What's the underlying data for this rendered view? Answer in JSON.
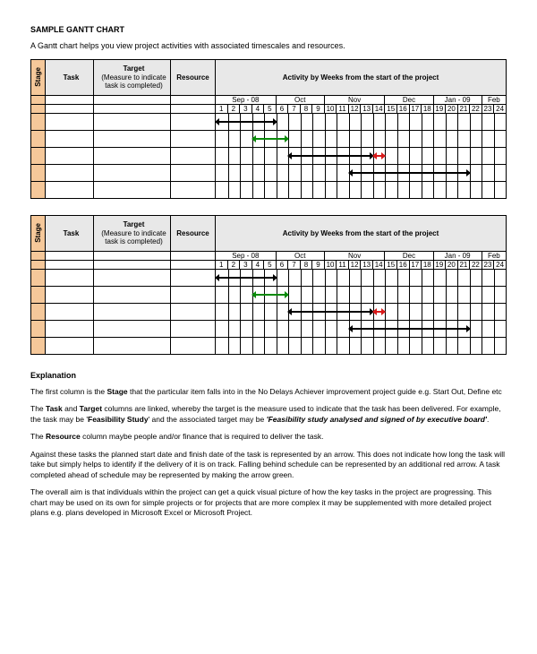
{
  "title": "SAMPLE GANTT CHART",
  "intro": "A Gantt chart helps you view project activities with associated timescales and resources.",
  "columns": {
    "stage": "Stage",
    "task": "Task",
    "target": "Target",
    "target_sub": "(Measure to indicate task is completed)",
    "resource": "Resource",
    "activity": "Activity by Weeks from the start of the project"
  },
  "months": [
    "Sep - 08",
    "Oct",
    "Nov",
    "Dec",
    "Jan - 09",
    "Feb"
  ],
  "month_spans": [
    5,
    4,
    5,
    4,
    4,
    2
  ],
  "weeks": [
    "1",
    "2",
    "3",
    "4",
    "5",
    "6",
    "7",
    "8",
    "9",
    "10",
    "11",
    "12",
    "13",
    "14",
    "15",
    "16",
    "17",
    "18",
    "19",
    "20",
    "21",
    "22",
    "23",
    "24"
  ],
  "gantt": {
    "n_weeks": 24,
    "colors": {
      "stage_bg": "#f5c89a",
      "header_bg": "#e8e8e8",
      "border": "#000000",
      "arrow_black": "#000000",
      "arrow_green": "#0a8a0a",
      "arrow_red": "#d81a1a"
    },
    "rows": [
      {
        "arrows": [
          {
            "start": 1,
            "end": 6,
            "color": "#000000"
          }
        ]
      },
      {
        "arrows": [
          {
            "start": 4,
            "end": 7,
            "color": "#0a8a0a"
          }
        ]
      },
      {
        "arrows": [
          {
            "start": 7,
            "end": 14,
            "color": "#000000"
          },
          {
            "start": 14,
            "end": 15,
            "color": "#d81a1a"
          }
        ]
      },
      {
        "arrows": [
          {
            "start": 12,
            "end": 22,
            "color": "#000000"
          }
        ]
      },
      {
        "arrows": []
      }
    ]
  },
  "explanation": {
    "heading": "Explanation",
    "p1_a": "The first column is the ",
    "p1_b": "Stage",
    "p1_c": " that the particular item falls into in the No Delays Achiever improvement project guide e.g. Start Out, Define etc",
    "p2_a": "The ",
    "p2_b": "Task",
    "p2_c": " and ",
    "p2_d": "Target",
    "p2_e": " columns are linked, whereby the target is the measure used to indicate that the task has been delivered.  For example, the task may be '",
    "p2_f": "Feasibility Study",
    "p2_g": "' and the associated target may be ",
    "p2_h": "'Feasibility study analysed and signed of by executive board'",
    "p2_i": ".",
    "p3_a": "The ",
    "p3_b": "Resource",
    "p3_c": " column maybe people and/or finance that is required to deliver the task.",
    "p4": "Against these tasks the planned start date and finish date of the task is represented by an arrow. This does not indicate how long the task will take but simply helps to identify if the delivery of it is on track. Falling behind schedule can be represented by an additional red arrow. A task completed ahead of schedule may be represented by making the arrow green.",
    "p5": "The overall aim is that individuals within the project can get a quick visual picture of how the key tasks in the project are progressing. This chart may be used on its own for simple projects or for projects that are more complex it may be supplemented with more detailed project plans e.g. plans developed in Microsoft Excel or Microsoft Project."
  }
}
